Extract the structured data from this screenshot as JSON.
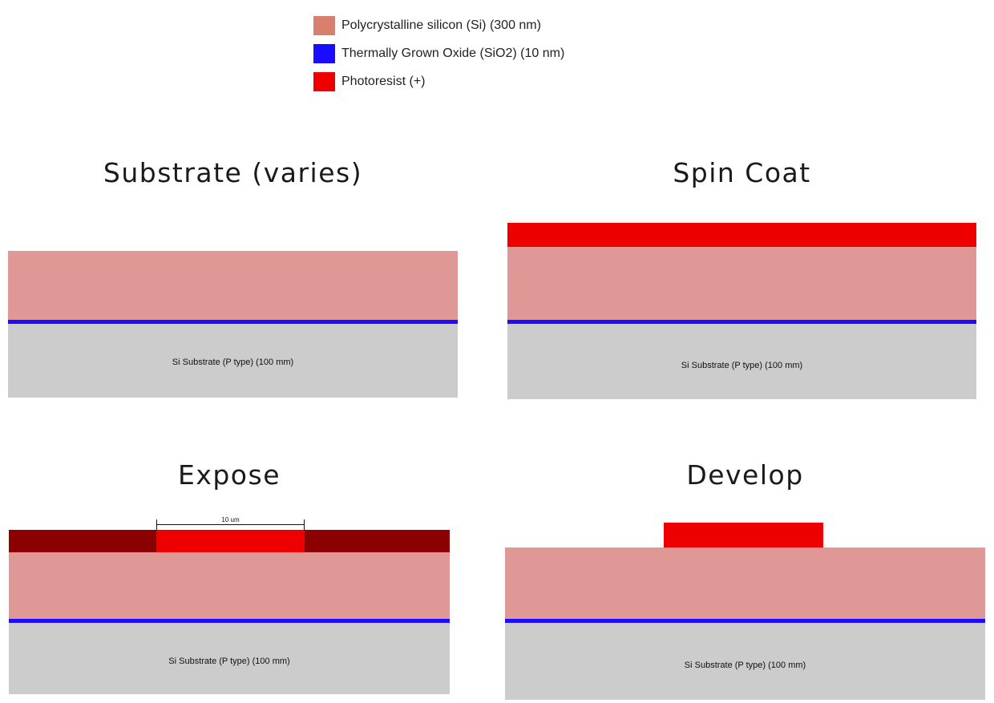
{
  "legend": {
    "items": [
      {
        "label": "Polycrystalline silicon (Si) (300 nm)",
        "color": "#d97f6d"
      },
      {
        "label": "Thermally Grown Oxide (SiO2) (10 nm)",
        "color": "#1a0dff"
      },
      {
        "label": "Photoresist (+)",
        "color": "#ee0000"
      }
    ]
  },
  "colors": {
    "polysilicon_layer": "#e09896",
    "oxide": "#1a0dff",
    "photoresist": "#ee0000",
    "exposed_photoresist": "#8b0000",
    "substrate": "#cccccc"
  },
  "panels": {
    "substrate": {
      "title": "Substrate (varies)",
      "substrate_label": "Si Substrate (P type) (100 mm)"
    },
    "spin_coat": {
      "title": "Spin Coat",
      "substrate_label": "Si Substrate (P type) (100 mm)"
    },
    "expose": {
      "title": "Expose",
      "substrate_label": "Si Substrate (P type) (100 mm)",
      "dimension_label": "10 um"
    },
    "develop": {
      "title": "Develop",
      "substrate_label": "Si Substrate (P type) (100 mm)"
    }
  }
}
